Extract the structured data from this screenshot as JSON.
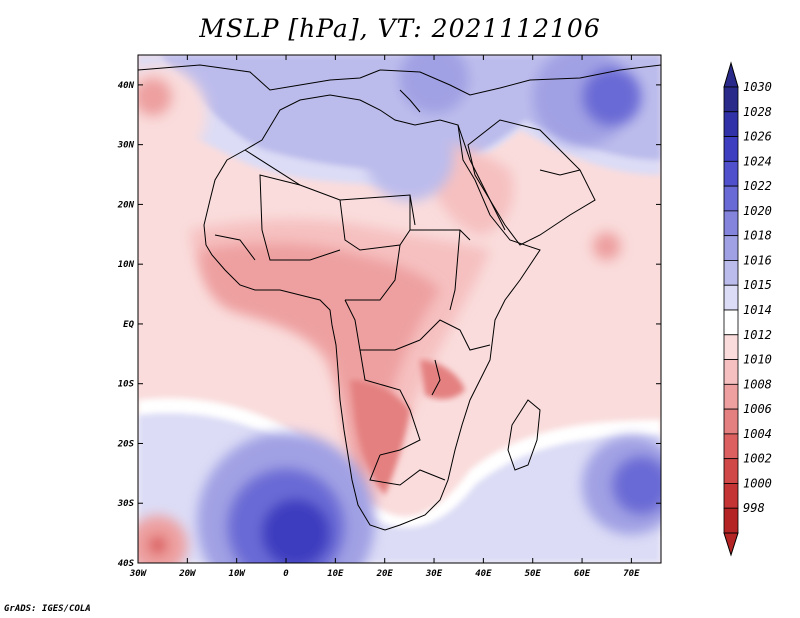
{
  "title": "MSLP [hPa], VT: 2021112106",
  "footer": "GrADS: IGES/COLA",
  "colorbar": {
    "levels": [
      "1030",
      "1028",
      "1026",
      "1024",
      "1022",
      "1020",
      "1018",
      "1016",
      "1015",
      "1014",
      "1012",
      "1010",
      "1008",
      "1006",
      "1004",
      "1002",
      "1000",
      "998"
    ],
    "colors": [
      "#2a2a8a",
      "#3232a8",
      "#3e3ec0",
      "#5050cc",
      "#6a6ad6",
      "#8484dc",
      "#a0a0e4",
      "#bcbcec",
      "#dcdcf6",
      "#ffffff",
      "#fadcdc",
      "#f6c0c0",
      "#eea0a0",
      "#e48080",
      "#dc6060",
      "#d04848",
      "#c43434",
      "#b42424"
    ]
  },
  "axes": {
    "lat_labels": [
      "40N",
      "30N",
      "20N",
      "10N",
      "EQ",
      "10S",
      "20S",
      "30S",
      "40S"
    ],
    "lon_labels": [
      "30W",
      "20W",
      "10W",
      "0",
      "10E",
      "20E",
      "30E",
      "40E",
      "50E",
      "60E",
      "70E"
    ]
  },
  "pressure_blobs": [
    {
      "lon": -26,
      "lat": 35,
      "r": 10,
      "level": "1012"
    },
    {
      "lon": -27,
      "lat": 38,
      "r": 4,
      "level": "1008"
    },
    {
      "lon": 66,
      "lat": 15,
      "r": 8,
      "level": "1012"
    },
    {
      "lon": 65,
      "lat": 13,
      "r": 3,
      "level": "1008"
    },
    {
      "lon": -26,
      "lat": -37,
      "r": 6,
      "level": "1008"
    },
    {
      "lon": -26,
      "lat": -37,
      "r": 2,
      "level": "1004"
    },
    {
      "lon": 0,
      "lat": -33,
      "r": 18,
      "level": "1018"
    },
    {
      "lon": 0,
      "lat": -34,
      "r": 12,
      "level": "1022"
    },
    {
      "lon": 2,
      "lat": -35,
      "r": 7,
      "level": "1026"
    },
    {
      "lon": 70,
      "lat": -27,
      "r": 10,
      "level": "1018"
    },
    {
      "lon": 72,
      "lat": -27,
      "r": 6,
      "level": "1022"
    },
    {
      "lon": 60,
      "lat": 38,
      "r": 10,
      "level": "1018"
    },
    {
      "lon": 66,
      "lat": 38,
      "r": 6,
      "level": "1022"
    },
    {
      "lon": 10,
      "lat": 36,
      "r": 8,
      "level": "1016"
    },
    {
      "lon": 25,
      "lat": 28,
      "r": 9,
      "level": "1016"
    },
    {
      "lon": 30,
      "lat": 41,
      "r": 7,
      "level": "1018"
    }
  ]
}
